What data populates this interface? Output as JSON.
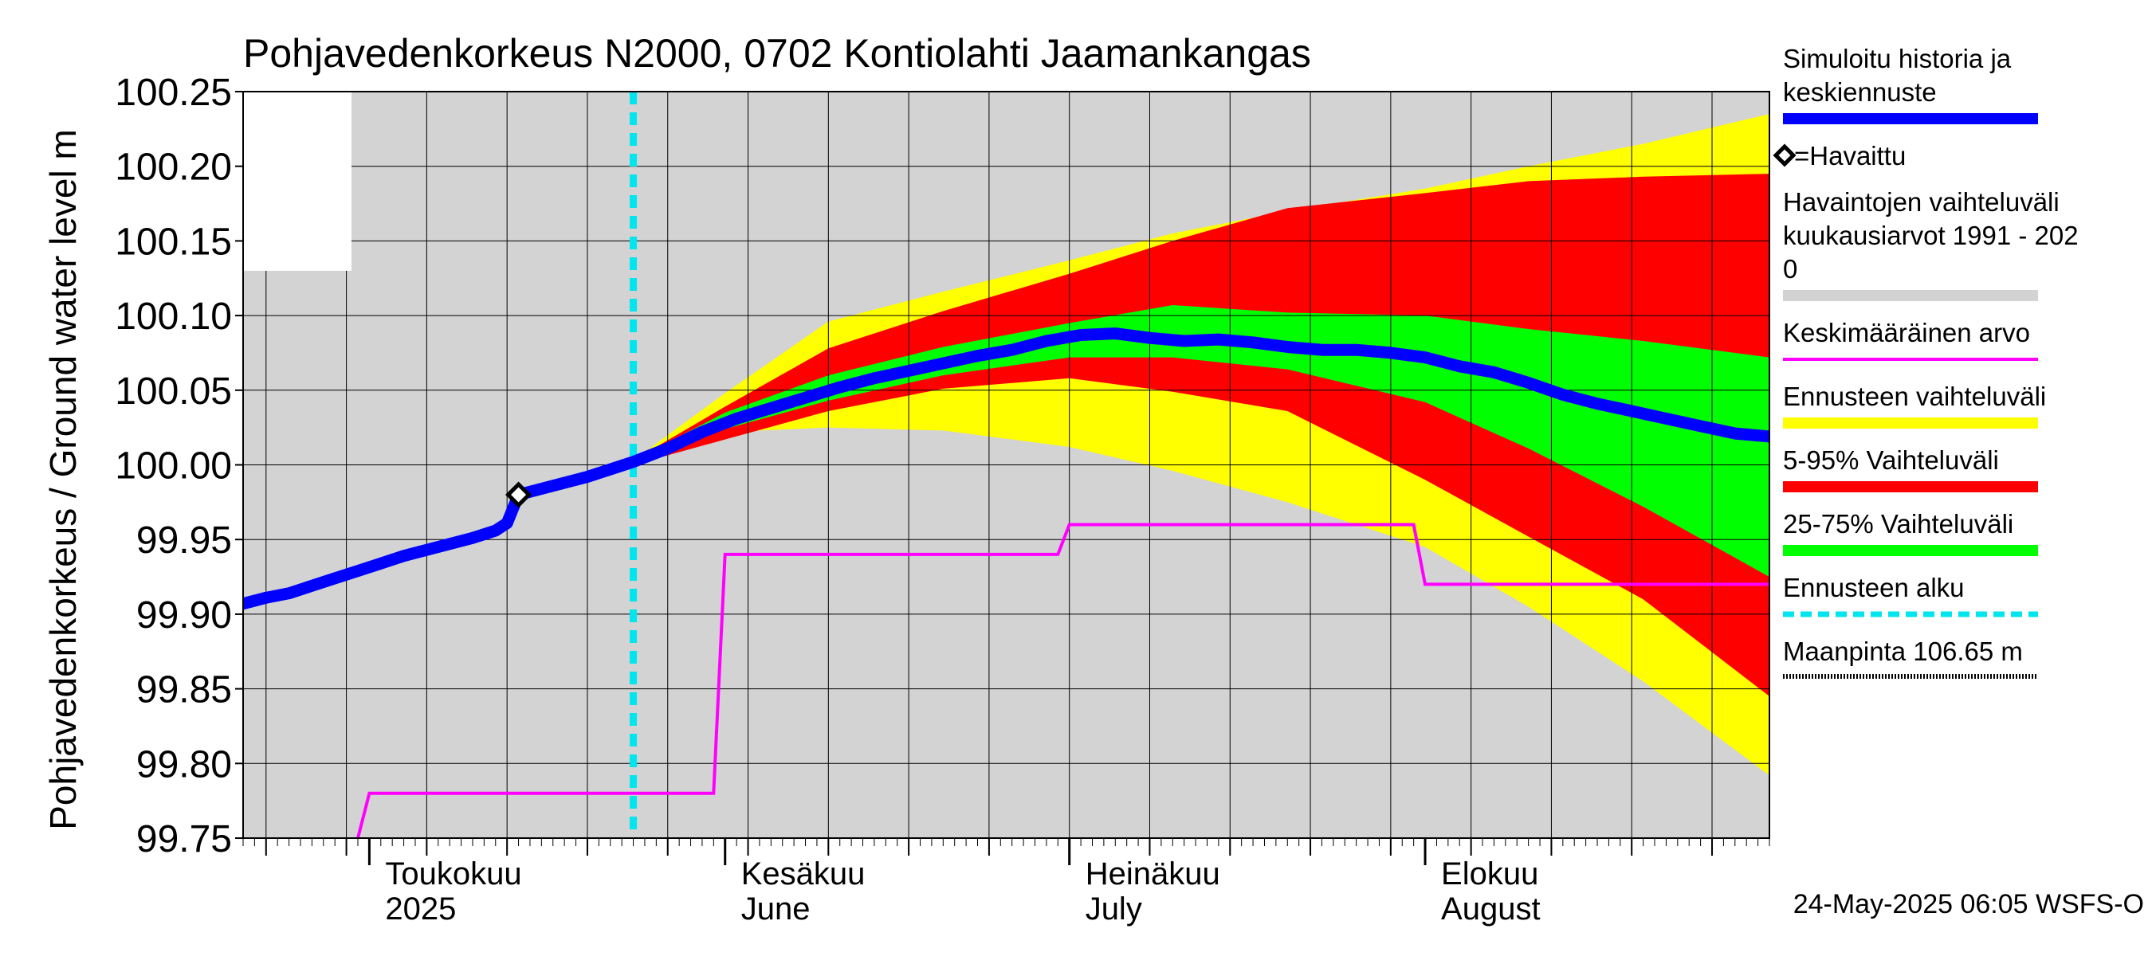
{
  "chart_data": {
    "type": "area",
    "title": "Pohjavedenkorkeus N2000, 0702 Kontiolahti Jaamankangas",
    "ylabel": "Pohjavedenkorkeus / Ground water level   m",
    "ylim": [
      99.75,
      100.25
    ],
    "yticks": [
      "99.75",
      "99.80",
      "99.85",
      "99.90",
      "99.95",
      "100.00",
      "100.05",
      "100.10",
      "100.15",
      "100.20",
      "100.25"
    ],
    "x_range": [
      "2025-04-20",
      "2025-08-31"
    ],
    "x_unit": "date",
    "month_labels": [
      {
        "date": "2025-05-01",
        "line1": "Toukokuu",
        "line2": "2025"
      },
      {
        "date": "2025-06-01",
        "line1": "Kesäkuu",
        "line2": "June"
      },
      {
        "date": "2025-07-01",
        "line1": "Heinäkuu",
        "line2": "July"
      },
      {
        "date": "2025-08-01",
        "line1": "Elokuu",
        "line2": "August"
      }
    ],
    "forecast_start": "2025-05-24",
    "observed": [
      {
        "x": "2025-05-14",
        "y": 99.98
      }
    ],
    "series": [
      {
        "name": "Simuloitu historia ja keskiennuste",
        "color": "#0000ff",
        "points": [
          [
            "2025-04-20",
            99.907
          ],
          [
            "2025-04-22",
            99.911
          ],
          [
            "2025-04-24",
            99.914
          ],
          [
            "2025-04-26",
            99.919
          ],
          [
            "2025-04-28",
            99.924
          ],
          [
            "2025-04-30",
            99.929
          ],
          [
            "2025-05-02",
            99.934
          ],
          [
            "2025-05-04",
            99.939
          ],
          [
            "2025-05-06",
            99.943
          ],
          [
            "2025-05-08",
            99.947
          ],
          [
            "2025-05-10",
            99.951
          ],
          [
            "2025-05-12",
            99.956
          ],
          [
            "2025-05-13",
            99.961
          ],
          [
            "2025-05-14",
            99.98
          ],
          [
            "2025-05-16",
            99.984
          ],
          [
            "2025-05-18",
            99.988
          ],
          [
            "2025-05-20",
            99.992
          ],
          [
            "2025-05-22",
            99.997
          ],
          [
            "2025-05-24",
            100.002
          ],
          [
            "2025-05-27",
            100.011
          ],
          [
            "2025-05-30",
            100.022
          ],
          [
            "2025-06-02",
            100.031
          ],
          [
            "2025-06-05",
            100.038
          ],
          [
            "2025-06-08",
            100.045
          ],
          [
            "2025-06-11",
            100.052
          ],
          [
            "2025-06-14",
            100.058
          ],
          [
            "2025-06-17",
            100.063
          ],
          [
            "2025-06-20",
            100.068
          ],
          [
            "2025-06-23",
            100.073
          ],
          [
            "2025-06-26",
            100.077
          ],
          [
            "2025-06-29",
            100.083
          ],
          [
            "2025-07-02",
            100.087
          ],
          [
            "2025-07-05",
            100.088
          ],
          [
            "2025-07-08",
            100.085
          ],
          [
            "2025-07-11",
            100.083
          ],
          [
            "2025-07-14",
            100.084
          ],
          [
            "2025-07-17",
            100.082
          ],
          [
            "2025-07-20",
            100.079
          ],
          [
            "2025-07-23",
            100.077
          ],
          [
            "2025-07-26",
            100.077
          ],
          [
            "2025-07-29",
            100.075
          ],
          [
            "2025-08-01",
            100.072
          ],
          [
            "2025-08-04",
            100.066
          ],
          [
            "2025-08-07",
            100.062
          ],
          [
            "2025-08-10",
            100.055
          ],
          [
            "2025-08-13",
            100.047
          ],
          [
            "2025-08-16",
            100.041
          ],
          [
            "2025-08-19",
            100.036
          ],
          [
            "2025-08-22",
            100.031
          ],
          [
            "2025-08-25",
            100.026
          ],
          [
            "2025-08-28",
            100.021
          ],
          [
            "2025-08-31",
            100.019
          ]
        ]
      },
      {
        "name": "Keskimääräinen arvo",
        "color": "#ff00ff",
        "points": [
          [
            "2025-04-30",
            99.75
          ],
          [
            "2025-05-01",
            99.78
          ],
          [
            "2025-05-31",
            99.78
          ],
          [
            "2025-06-01",
            99.94
          ],
          [
            "2025-06-30",
            99.94
          ],
          [
            "2025-07-01",
            99.96
          ],
          [
            "2025-07-31",
            99.96
          ],
          [
            "2025-08-01",
            99.92
          ],
          [
            "2025-08-31",
            99.92
          ]
        ]
      }
    ],
    "bands": [
      {
        "name": "Havaintojen vaihteluväli kuukausiarvot 1991 - 2020",
        "color": "#d3d3d3",
        "points": [
          [
            "2025-04-20",
            99.75,
            100.25
          ],
          [
            "2025-08-31",
            99.75,
            100.25
          ]
        ]
      },
      {
        "name": "Ennusteen vaihteluväli",
        "color": "#ffff00",
        "points": [
          [
            "2025-05-24",
            100.0,
            100.003
          ],
          [
            "2025-06-01",
            100.022,
            100.048
          ],
          [
            "2025-06-10",
            100.025,
            100.096
          ],
          [
            "2025-06-20",
            100.023,
            100.116
          ],
          [
            "2025-07-01",
            100.012,
            100.137
          ],
          [
            "2025-07-10",
            99.996,
            100.155
          ],
          [
            "2025-07-20",
            99.975,
            100.17
          ],
          [
            "2025-08-01",
            99.945,
            100.185
          ],
          [
            "2025-08-10",
            99.905,
            100.2
          ],
          [
            "2025-08-20",
            99.855,
            100.215
          ],
          [
            "2025-08-31",
            99.792,
            100.235
          ]
        ]
      },
      {
        "name": "5-95% Vaihteluväli",
        "color": "#ff0000",
        "points": [
          [
            "2025-05-24",
            100.0,
            100.003
          ],
          [
            "2025-06-01",
            100.017,
            100.039
          ],
          [
            "2025-06-10",
            100.036,
            100.078
          ],
          [
            "2025-06-20",
            100.051,
            100.103
          ],
          [
            "2025-07-01",
            100.058,
            100.128
          ],
          [
            "2025-07-10",
            100.049,
            100.15
          ],
          [
            "2025-07-20",
            100.036,
            100.172
          ],
          [
            "2025-08-01",
            99.99,
            100.182
          ],
          [
            "2025-08-10",
            99.952,
            100.19
          ],
          [
            "2025-08-20",
            99.91,
            100.193
          ],
          [
            "2025-08-31",
            99.845,
            100.195
          ]
        ]
      },
      {
        "name": "25-75% Vaihteluväli",
        "color": "#00ff00",
        "points": [
          [
            "2025-05-24",
            100.0,
            100.003
          ],
          [
            "2025-06-01",
            100.024,
            100.035
          ],
          [
            "2025-06-10",
            100.043,
            100.06
          ],
          [
            "2025-06-20",
            100.06,
            100.079
          ],
          [
            "2025-07-01",
            100.072,
            100.095
          ],
          [
            "2025-07-10",
            100.072,
            100.107
          ],
          [
            "2025-07-20",
            100.064,
            100.102
          ],
          [
            "2025-08-01",
            100.042,
            100.1
          ],
          [
            "2025-08-10",
            100.011,
            100.091
          ],
          [
            "2025-08-20",
            99.972,
            100.083
          ],
          [
            "2025-08-31",
            99.925,
            100.072
          ]
        ]
      }
    ],
    "legend": [
      {
        "label": "Simuloitu historia ja\nkeskiennuste",
        "color": "#0000ff",
        "style": "thick"
      },
      {
        "label": "=Havaittu",
        "color": "#000000",
        "style": "diamond"
      },
      {
        "label": "Havaintojen vaihteluväli\n kuukausiarvot 1991 - 202\n0",
        "color": "#d3d3d3",
        "style": "band"
      },
      {
        "label": "Keskimääräinen arvo",
        "color": "#ff00ff",
        "style": "line"
      },
      {
        "label": "Ennusteen vaihteluväli",
        "color": "#ffff00",
        "style": "band"
      },
      {
        "label": "5-95% Vaihteluväli",
        "color": "#ff0000",
        "style": "band"
      },
      {
        "label": "25-75% Vaihteluväli",
        "color": "#00ff00",
        "style": "band"
      },
      {
        "label": "Ennusteen alku",
        "color": "#00e5ee",
        "style": "dashed"
      },
      {
        "label": "Maanpinta 106.65 m",
        "color": "#000000",
        "style": "dotted"
      }
    ],
    "grid": true,
    "legend_position": "right",
    "footer": "24-May-2025 06:05 WSFS-O"
  }
}
